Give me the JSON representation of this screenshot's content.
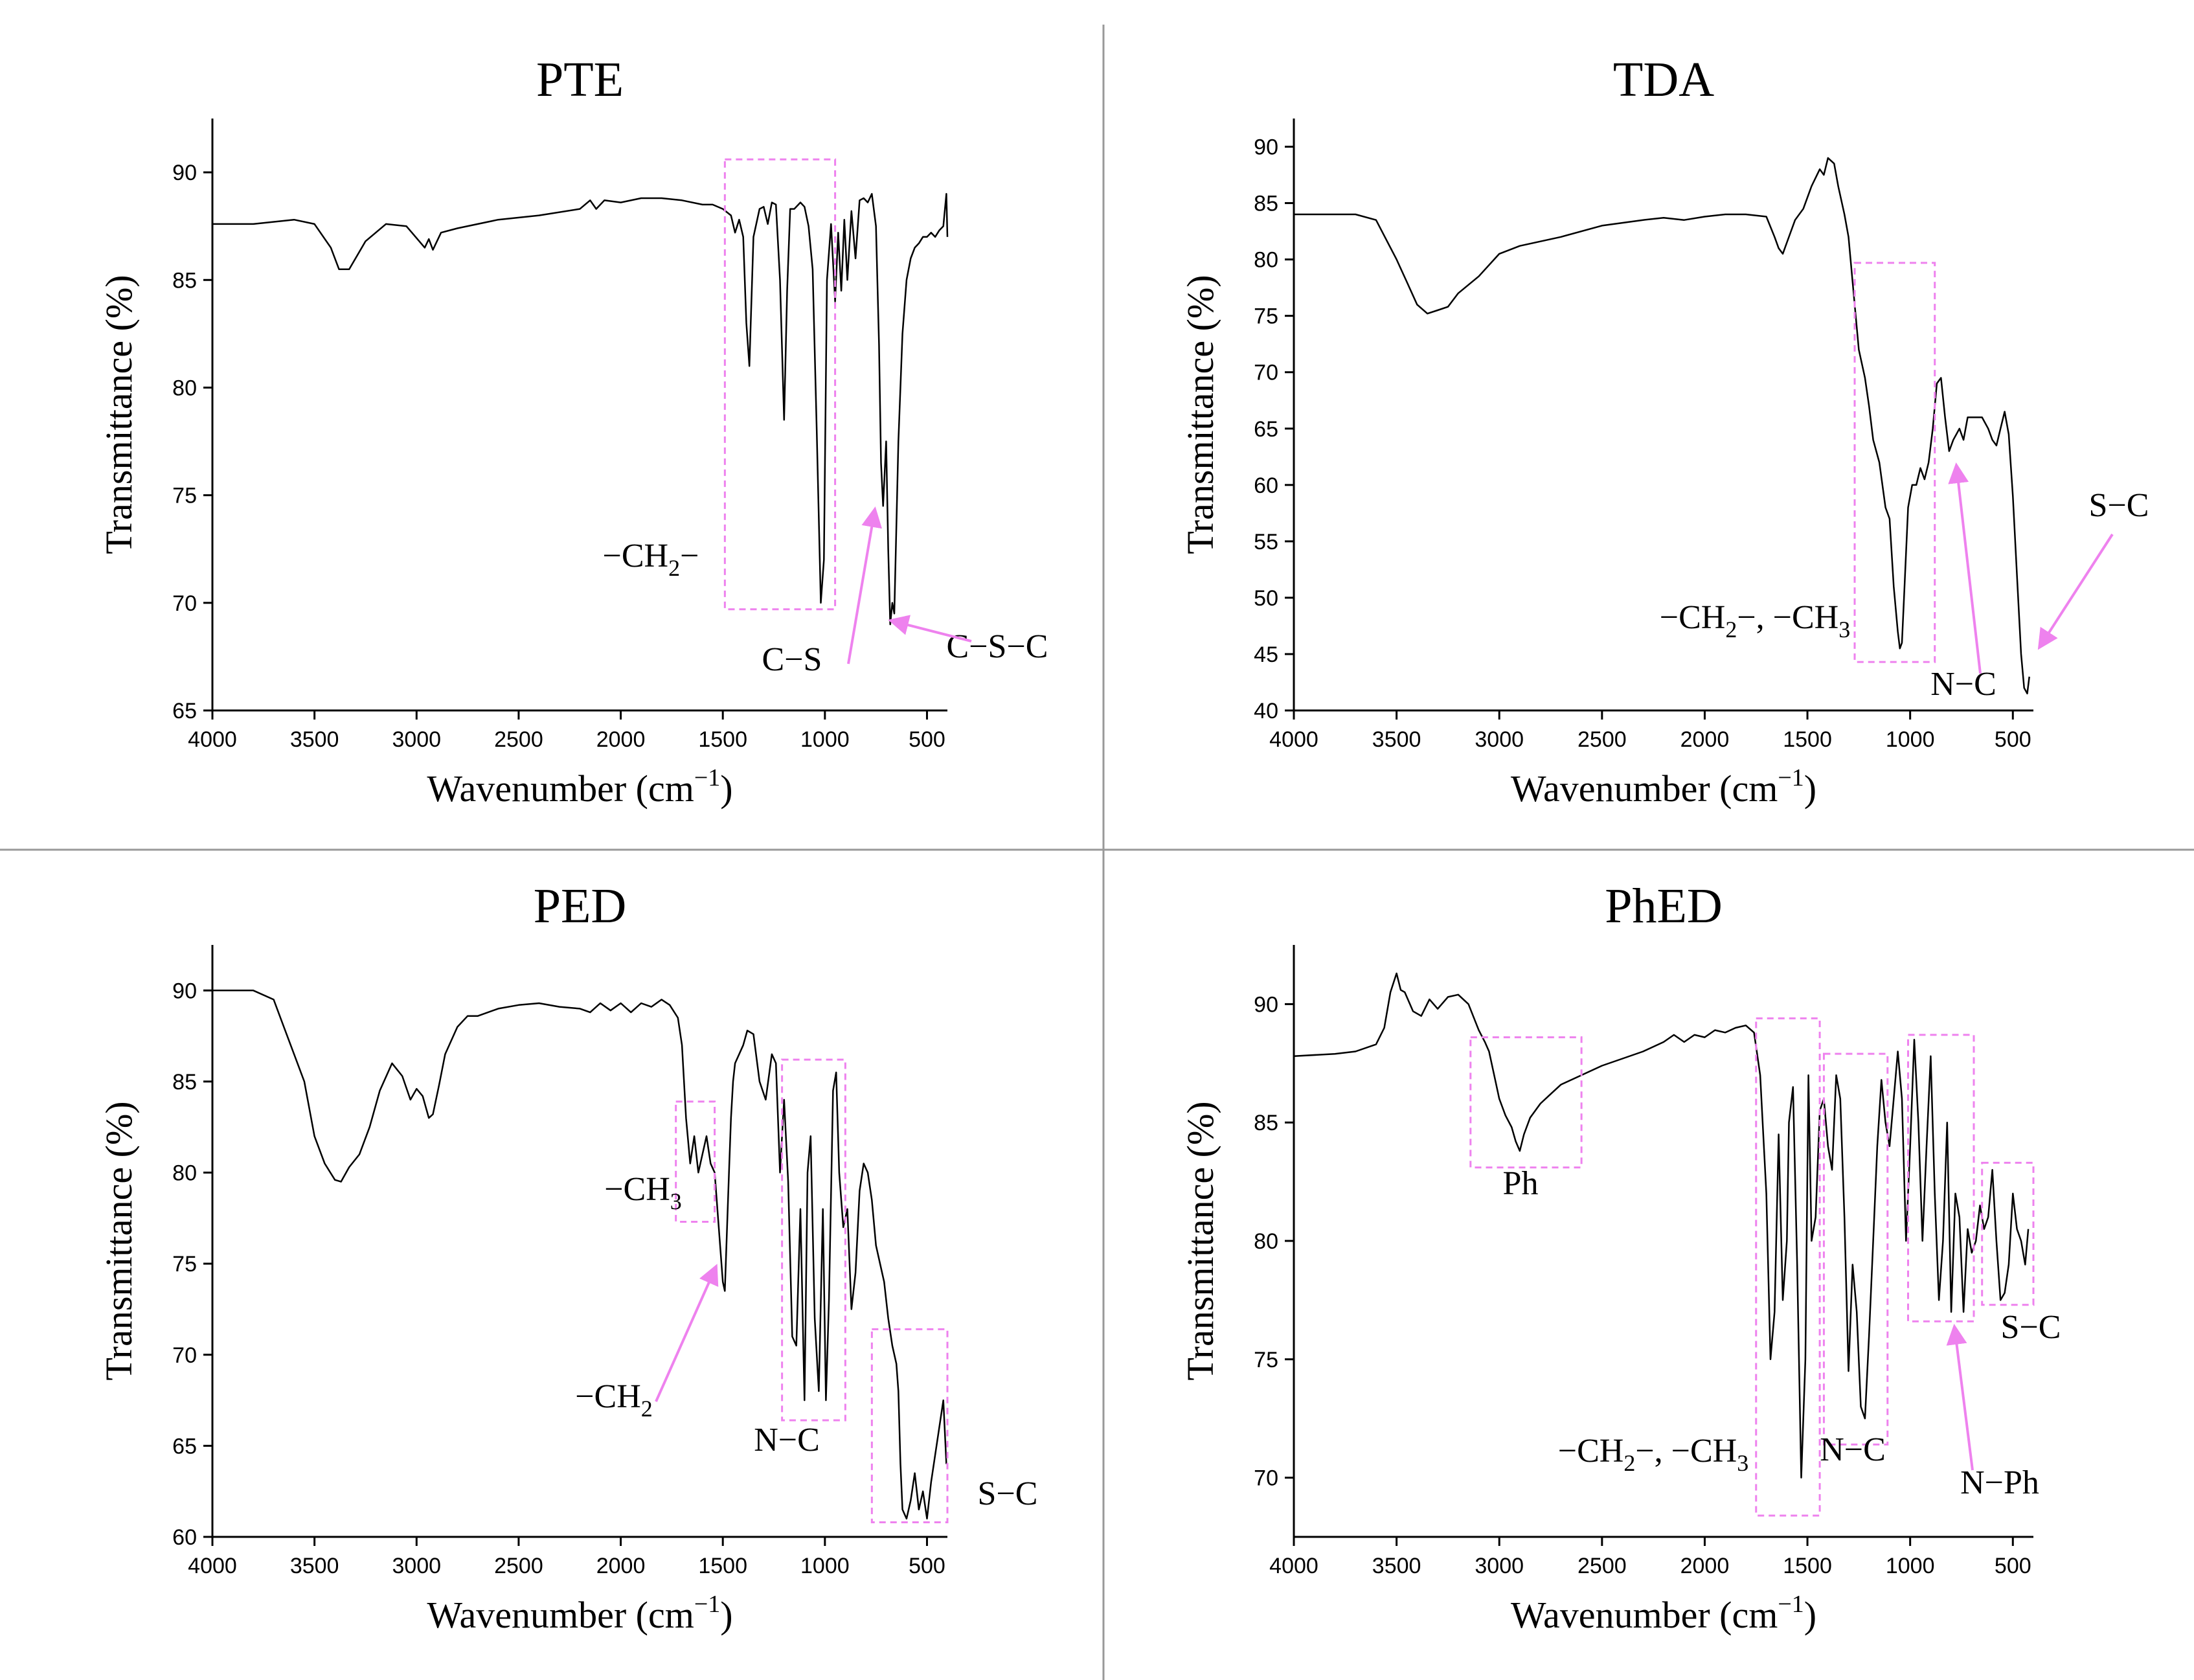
{
  "figure": {
    "colors": {
      "trace": "#000000",
      "annotation": "#ee82ee",
      "divider": "#999999",
      "axis": "#000000"
    },
    "glyphs": {
      "sub2": "2",
      "sub3": "3",
      "sup_minus1": "−1"
    }
  },
  "chart_data": [
    {
      "id": "pte",
      "type": "line",
      "title": "PTE",
      "xlabel": "Wavenumber (cm",
      "xlabel_sup": "−1",
      "xlabel_close": ")",
      "ylabel": "Transmittance (%)",
      "xlim": [
        4000,
        400
      ],
      "ylim": [
        65,
        92.5
      ],
      "xticks": [
        4000,
        3500,
        3000,
        2500,
        2000,
        1500,
        1000,
        500
      ],
      "yticks": [
        65,
        70,
        75,
        80,
        85,
        90
      ],
      "series": [
        {
          "name": "PTE",
          "x": [
            4000,
            3800,
            3600,
            3500,
            3420,
            3380,
            3330,
            3250,
            3150,
            3050,
            2960,
            2940,
            2920,
            2880,
            2800,
            2600,
            2400,
            2200,
            2150,
            2120,
            2080,
            2000,
            1900,
            1800,
            1700,
            1600,
            1550,
            1500,
            1460,
            1440,
            1420,
            1400,
            1385,
            1370,
            1350,
            1320,
            1300,
            1280,
            1260,
            1240,
            1220,
            1200,
            1185,
            1170,
            1150,
            1120,
            1100,
            1080,
            1060,
            1040,
            1020,
            1005,
            990,
            970,
            950,
            935,
            920,
            905,
            890,
            870,
            850,
            830,
            810,
            790,
            770,
            750,
            735,
            725,
            715,
            700,
            690,
            680,
            670,
            660,
            640,
            620,
            600,
            580,
            560,
            540,
            520,
            500,
            480,
            460,
            440,
            420,
            405,
            400
          ],
          "y": [
            87.6,
            87.6,
            87.8,
            87.6,
            86.5,
            85.5,
            85.5,
            86.8,
            87.6,
            87.5,
            86.5,
            86.9,
            86.4,
            87.2,
            87.4,
            87.8,
            88.0,
            88.3,
            88.7,
            88.3,
            88.7,
            88.6,
            88.8,
            88.8,
            88.7,
            88.5,
            88.5,
            88.3,
            88.0,
            87.2,
            87.8,
            87.0,
            83.0,
            81.0,
            87.0,
            88.3,
            88.4,
            87.6,
            88.6,
            88.5,
            85.0,
            78.5,
            84.5,
            88.3,
            88.3,
            88.6,
            88.4,
            87.5,
            85.5,
            78.0,
            70.0,
            72.0,
            85.0,
            87.6,
            84.0,
            87.2,
            84.5,
            87.8,
            85.0,
            88.2,
            86.0,
            88.7,
            88.8,
            88.6,
            89.0,
            87.5,
            82.0,
            76.5,
            74.5,
            77.5,
            72.5,
            69.0,
            70.0,
            69.5,
            77.5,
            82.5,
            85.0,
            86.0,
            86.5,
            86.7,
            87.0,
            87.0,
            87.2,
            87.0,
            87.3,
            87.5,
            89.0,
            87.0
          ]
        }
      ],
      "boxes": [
        {
          "x0": 1490,
          "x1": 950,
          "y0": 69.7,
          "y1": 90.6
        }
      ],
      "labels": [
        {
          "key": "ch2_pre",
          "text": "−CH",
          "sub": "2",
          "post": "−"
        },
        {
          "key": "cs",
          "text": "C−S"
        },
        {
          "key": "csc",
          "text": "C−S−C"
        }
      ]
    },
    {
      "id": "tda",
      "type": "line",
      "title": "TDA",
      "xlabel": "Wavenumber (cm",
      "xlabel_sup": "−1",
      "xlabel_close": ")",
      "ylabel": "Transmittance (%)",
      "xlim": [
        4000,
        400
      ],
      "ylim": [
        40,
        92.5
      ],
      "xticks": [
        4000,
        3500,
        3000,
        2500,
        2000,
        1500,
        1000,
        500
      ],
      "yticks": [
        40,
        45,
        50,
        55,
        60,
        65,
        70,
        75,
        80,
        85,
        90
      ],
      "series": [
        {
          "name": "TDA",
          "x": [
            4000,
            3800,
            3700,
            3600,
            3500,
            3450,
            3400,
            3350,
            3300,
            3250,
            3200,
            3100,
            3000,
            2900,
            2700,
            2500,
            2300,
            2200,
            2100,
            2000,
            1900,
            1800,
            1700,
            1660,
            1640,
            1620,
            1600,
            1560,
            1520,
            1480,
            1440,
            1420,
            1400,
            1370,
            1350,
            1320,
            1300,
            1280,
            1250,
            1220,
            1200,
            1180,
            1150,
            1120,
            1100,
            1080,
            1060,
            1050,
            1040,
            1030,
            1010,
            990,
            970,
            950,
            930,
            910,
            890,
            870,
            850,
            830,
            810,
            790,
            760,
            740,
            720,
            700,
            680,
            650,
            620,
            600,
            580,
            560,
            540,
            520,
            500,
            480,
            460,
            445,
            430,
            420
          ],
          "y": [
            84,
            84,
            84,
            83.5,
            80,
            78,
            76,
            75.2,
            75.5,
            75.8,
            77,
            78.5,
            80.5,
            81.2,
            82,
            83,
            83.5,
            83.7,
            83.5,
            83.8,
            84,
            84,
            83.8,
            82,
            81,
            80.5,
            81.5,
            83.5,
            84.5,
            86.5,
            88,
            87.5,
            89,
            88.5,
            86.5,
            84,
            82,
            78,
            72,
            69.5,
            67,
            64,
            62,
            58,
            57,
            51,
            47,
            45.5,
            46,
            50,
            58,
            60,
            60,
            61.5,
            60.5,
            62,
            65,
            69,
            69.5,
            66,
            63,
            64,
            65,
            64,
            66,
            66,
            66,
            66,
            65,
            64,
            63.5,
            65,
            66.5,
            64.5,
            59,
            52,
            45,
            42,
            41.5,
            43
          ]
        }
      ],
      "boxes": [
        {
          "x0": 1270,
          "x1": 880,
          "y0": 44.3,
          "y1": 79.7
        }
      ],
      "labels": [
        {
          "key": "ch2ch3",
          "text": "−CH",
          "sub": "2",
          "mid": "−, −CH",
          "sub2": "3"
        },
        {
          "key": "nc",
          "text": "N−C"
        },
        {
          "key": "sc",
          "text": "S−C"
        }
      ]
    },
    {
      "id": "ped",
      "type": "line",
      "title": "PED",
      "xlabel": "Wavenumber (cm",
      "xlabel_sup": "−1",
      "xlabel_close": ")",
      "ylabel": "Transmittance (%)",
      "xlim": [
        4000,
        400
      ],
      "ylim": [
        60,
        92.5
      ],
      "xticks": [
        4000,
        3500,
        3000,
        2500,
        2000,
        1500,
        1000,
        500
      ],
      "yticks": [
        60,
        65,
        70,
        75,
        80,
        85,
        90
      ],
      "series": [
        {
          "name": "PED",
          "x": [
            4000,
            3800,
            3700,
            3650,
            3600,
            3550,
            3500,
            3450,
            3400,
            3370,
            3330,
            3280,
            3230,
            3180,
            3120,
            3070,
            3030,
            3000,
            2970,
            2940,
            2920,
            2890,
            2860,
            2800,
            2750,
            2700,
            2600,
            2500,
            2400,
            2300,
            2200,
            2150,
            2100,
            2050,
            2000,
            1950,
            1900,
            1850,
            1800,
            1760,
            1720,
            1700,
            1680,
            1660,
            1640,
            1620,
            1600,
            1580,
            1560,
            1540,
            1520,
            1500,
            1490,
            1470,
            1460,
            1450,
            1440,
            1420,
            1400,
            1380,
            1350,
            1320,
            1290,
            1260,
            1240,
            1220,
            1200,
            1180,
            1160,
            1140,
            1120,
            1100,
            1085,
            1070,
            1050,
            1030,
            1010,
            995,
            980,
            960,
            945,
            930,
            910,
            890,
            870,
            850,
            830,
            810,
            790,
            770,
            750,
            730,
            710,
            690,
            670,
            650,
            640,
            630,
            620,
            600,
            580,
            560,
            540,
            520,
            500,
            480,
            460,
            440,
            420,
            405
          ],
          "y": [
            90,
            90,
            89.5,
            88,
            86.5,
            85,
            82,
            80.5,
            79.6,
            79.5,
            80.3,
            81,
            82.5,
            84.5,
            86,
            85.3,
            84,
            84.6,
            84.2,
            83,
            83.2,
            84.8,
            86.5,
            88,
            88.6,
            88.6,
            89,
            89.2,
            89.3,
            89.1,
            89,
            88.8,
            89.3,
            88.9,
            89.3,
            88.8,
            89.3,
            89.1,
            89.5,
            89.2,
            88.5,
            87,
            83,
            80.5,
            82,
            80,
            81,
            82,
            80.5,
            80,
            77,
            74,
            73.5,
            80,
            83,
            85,
            86,
            86.5,
            87,
            87.8,
            87.6,
            85,
            84,
            86.5,
            86,
            80,
            84,
            79.5,
            71,
            70.5,
            78,
            67.5,
            80,
            82,
            72,
            68,
            78,
            67.5,
            73,
            84.5,
            85.5,
            80,
            77,
            78,
            72.5,
            74.5,
            79,
            80.5,
            80,
            78.5,
            76,
            75,
            74,
            72,
            70.5,
            69.5,
            68,
            64,
            61.5,
            61,
            62,
            63.5,
            61.5,
            62.5,
            61,
            63,
            64.5,
            66,
            67.5,
            64
          ]
        }
      ],
      "boxes": [
        {
          "x0": 1730,
          "x1": 1540,
          "y0": 77.3,
          "y1": 83.9
        },
        {
          "x0": 1210,
          "x1": 900,
          "y0": 66.4,
          "y1": 86.2
        },
        {
          "x0": 770,
          "x1": 400,
          "y0": 60.8,
          "y1": 71.4
        }
      ],
      "labels": [
        {
          "key": "ch3",
          "text": "−CH",
          "sub": "3"
        },
        {
          "key": "ch2",
          "text": "−CH",
          "sub": "2"
        },
        {
          "key": "nc",
          "text": "N−C"
        },
        {
          "key": "sc",
          "text": "S−C"
        }
      ]
    },
    {
      "id": "phed",
      "type": "line",
      "title": "PhED",
      "xlabel": "Wavenumber (cm",
      "xlabel_sup": "−1",
      "xlabel_close": ")",
      "ylabel": "Transmittance (%)",
      "xlim": [
        4000,
        400
      ],
      "ylim": [
        67.5,
        92.5
      ],
      "xticks": [
        4000,
        3500,
        3000,
        2500,
        2000,
        1500,
        1000,
        500
      ],
      "yticks": [
        70,
        75,
        80,
        85,
        90
      ],
      "series": [
        {
          "name": "PhED",
          "x": [
            4000,
            3800,
            3700,
            3600,
            3560,
            3530,
            3500,
            3480,
            3460,
            3420,
            3380,
            3340,
            3300,
            3250,
            3200,
            3150,
            3100,
            3070,
            3050,
            3020,
            3000,
            2970,
            2940,
            2920,
            2900,
            2880,
            2850,
            2800,
            2750,
            2700,
            2600,
            2500,
            2400,
            2300,
            2200,
            2150,
            2100,
            2050,
            2000,
            1950,
            1900,
            1850,
            1800,
            1760,
            1730,
            1700,
            1680,
            1660,
            1640,
            1620,
            1600,
            1590,
            1570,
            1550,
            1530,
            1510,
            1495,
            1480,
            1460,
            1440,
            1420,
            1400,
            1380,
            1360,
            1340,
            1320,
            1300,
            1280,
            1260,
            1240,
            1220,
            1200,
            1180,
            1160,
            1140,
            1120,
            1100,
            1080,
            1060,
            1040,
            1020,
            1000,
            980,
            960,
            940,
            920,
            900,
            880,
            860,
            840,
            820,
            800,
            780,
            760,
            740,
            720,
            700,
            680,
            660,
            640,
            620,
            600,
            580,
            560,
            540,
            520,
            500,
            480,
            460,
            440,
            425
          ],
          "y": [
            87.8,
            87.9,
            88.0,
            88.3,
            89,
            90.5,
            91.3,
            90.6,
            90.5,
            89.7,
            89.5,
            90.2,
            89.8,
            90.3,
            90.4,
            90,
            88.9,
            88.4,
            88,
            86.8,
            86,
            85.3,
            84.8,
            84.2,
            83.8,
            84.5,
            85.2,
            85.8,
            86.2,
            86.6,
            87,
            87.4,
            87.7,
            88,
            88.4,
            88.7,
            88.4,
            88.7,
            88.6,
            88.9,
            88.8,
            89,
            89.1,
            88.8,
            87,
            82,
            75,
            77,
            84.5,
            77.5,
            80,
            85,
            86.5,
            79,
            70,
            75,
            87,
            80,
            81,
            85.5,
            86,
            84,
            83,
            87,
            86,
            81,
            74.5,
            79,
            77,
            73,
            72.5,
            76,
            80,
            84,
            86.8,
            85,
            84,
            86,
            88,
            86,
            80,
            84,
            88.5,
            85,
            80,
            84,
            87.8,
            82,
            77.5,
            80,
            85,
            77,
            82,
            81,
            77,
            80.5,
            79.5,
            80,
            81.5,
            80.5,
            81,
            83,
            80,
            77.5,
            77.8,
            79,
            82,
            80.5,
            80,
            79,
            80.5
          ]
        }
      ],
      "boxes": [
        {
          "x0": 3140,
          "x1": 2600,
          "y0": 83.1,
          "y1": 88.6
        },
        {
          "x0": 1750,
          "x1": 1440,
          "y0": 68.4,
          "y1": 89.4
        },
        {
          "x0": 1420,
          "x1": 1110,
          "y0": 71.4,
          "y1": 87.9
        },
        {
          "x0": 1010,
          "x1": 690,
          "y0": 76.6,
          "y1": 88.7
        },
        {
          "x0": 650,
          "x1": 400,
          "y0": 77.3,
          "y1": 83.3
        }
      ],
      "labels": [
        {
          "key": "ph",
          "text": "Ph"
        },
        {
          "key": "ch2ch3",
          "text": "−CH",
          "sub": "2",
          "mid": "−, −CH",
          "sub2": "3"
        },
        {
          "key": "nc",
          "text": "N−C"
        },
        {
          "key": "nph",
          "text": "N−Ph"
        },
        {
          "key": "sc",
          "text": "S−C"
        }
      ]
    }
  ]
}
